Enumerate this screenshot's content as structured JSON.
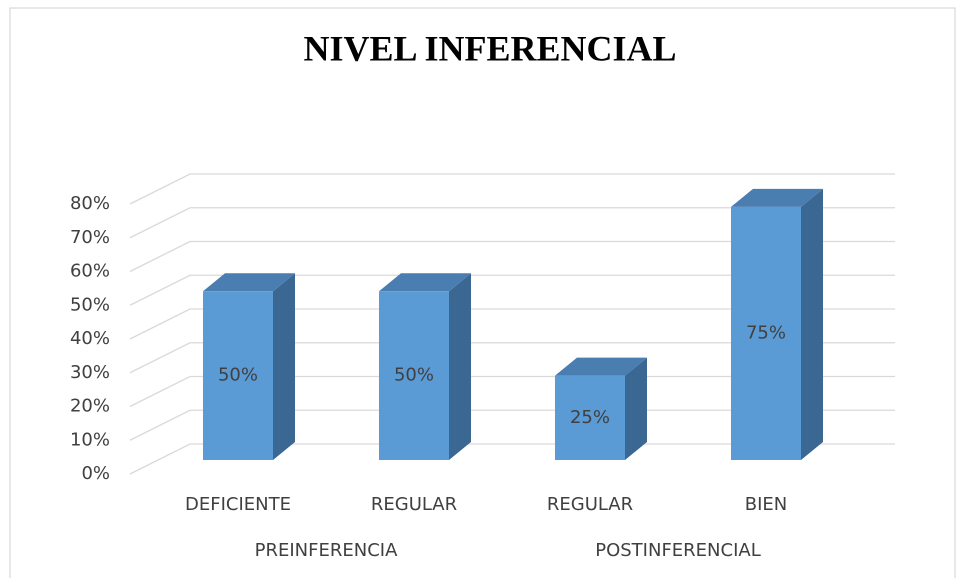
{
  "chart_data": {
    "type": "bar3d",
    "title": "NIVEL INFERENCIAL",
    "categories": [
      "DEFICIENTE",
      "REGULAR",
      "REGULAR",
      "BIEN"
    ],
    "groups": [
      "PREINFERENCIA",
      "POSTINFERENCIAL"
    ],
    "values": [
      50,
      50,
      25,
      75
    ],
    "value_labels": [
      "50%",
      "50%",
      "25%",
      "75%"
    ],
    "color": "#5b9bd5",
    "ylim": [
      0,
      80
    ],
    "yticks": [
      {
        "value": 0,
        "label": "0%"
      },
      {
        "value": 10,
        "label": "10%"
      },
      {
        "value": 20,
        "label": "20%"
      },
      {
        "value": 30,
        "label": "30%"
      },
      {
        "value": 40,
        "label": "40%"
      },
      {
        "value": 50,
        "label": "50%"
      },
      {
        "value": 60,
        "label": "60%"
      },
      {
        "value": 70,
        "label": "70%"
      },
      {
        "value": 80,
        "label": "80%"
      }
    ],
    "grid": true
  }
}
